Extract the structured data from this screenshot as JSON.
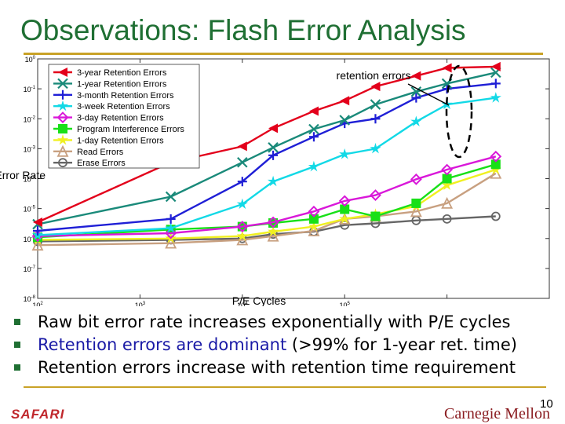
{
  "slide": {
    "title": "Observations: Flash Error Analysis",
    "bullets": [
      {
        "pre": "Raw bit error rate increases exponentially with P/E cycles",
        "highlight": "",
        "post": ""
      },
      {
        "pre": "",
        "highlight": "Retention errors are dominant",
        "post": " (>99% for 1-year ret. time)"
      },
      {
        "pre": "Retention errors increase with retention time requirement",
        "highlight": "",
        "post": ""
      }
    ],
    "footer_left": "SAFARI",
    "footer_right": "Carnegie Mellon",
    "page_number": "10",
    "colors": {
      "title": "#1f6f33",
      "rule": "#c9a227",
      "highlight": "#1a1aa6"
    }
  },
  "chart_data": {
    "type": "line",
    "x_scale": "log",
    "y_scale": "log",
    "xlabel": "P/E Cycles",
    "ylabel": "Raw Bit Error Rate",
    "xlim": [
      100,
      10000000
    ],
    "ylim": [
      1e-08,
      1
    ],
    "x_tick_labels": [
      "10^2",
      "10^3",
      "10^4",
      "10^5"
    ],
    "y_tick_labels": [
      "10^0",
      "10^-1",
      "10^-2",
      "10^-3",
      "10^-4",
      "10^-5",
      "10^-6",
      "10^-7",
      "10^-8"
    ],
    "legend_position": "top-left",
    "annotation": {
      "text": "retention errors"
    },
    "x": [
      100,
      2000,
      10000,
      20000,
      50000,
      100000,
      200000,
      500000,
      1000000,
      3000000
    ],
    "series": [
      {
        "name": "3-year Retention Errors",
        "color": "#e3001b",
        "marker": "triangle-left",
        "values": [
          3.5e-06,
          0.00035,
          0.0012,
          0.0048,
          0.018,
          0.04,
          0.12,
          0.27,
          0.5,
          0.55
        ]
      },
      {
        "name": "1-year Retention Errors",
        "color": "#1a8a7a",
        "marker": "x",
        "values": [
          3e-06,
          2.5e-05,
          0.00035,
          0.0011,
          0.0045,
          0.009,
          0.03,
          0.08,
          0.15,
          0.35
        ]
      },
      {
        "name": "3-month Retention Errors",
        "color": "#1f1fd6",
        "marker": "plus",
        "values": [
          1.8e-06,
          4.5e-06,
          8e-05,
          0.0006,
          0.0025,
          0.007,
          0.01,
          0.05,
          0.1,
          0.15
        ]
      },
      {
        "name": "3-week Retention Errors",
        "color": "#12d9e6",
        "marker": "star",
        "values": [
          1.3e-06,
          2.2e-06,
          1.4e-05,
          8e-05,
          0.00025,
          0.00065,
          0.001,
          0.008,
          0.03,
          0.05
        ]
      },
      {
        "name": "3-day Retention Errors",
        "color": "#d918d9",
        "marker": "diamond",
        "values": [
          1.2e-06,
          1.5e-06,
          2.5e-06,
          3.5e-06,
          8e-06,
          1.8e-05,
          2.8e-05,
          9.5e-05,
          0.0002,
          0.00055
        ]
      },
      {
        "name": "Program Interference Errors",
        "color": "#18e018",
        "marker": "square-star",
        "values": [
          1.1e-06,
          2e-06,
          2.5e-06,
          3.3e-06,
          4.5e-06,
          9.5e-06,
          5.5e-06,
          1.5e-05,
          0.0001,
          0.0003
        ]
      },
      {
        "name": "1-day Retention Errors",
        "color": "#f0f020",
        "marker": "star",
        "values": [
          9e-07,
          1e-06,
          1.2e-06,
          1.7e-06,
          2.5e-06,
          4.5e-06,
          6.5e-06,
          1.2e-05,
          6e-05,
          0.0002
        ]
      },
      {
        "name": "Read Errors",
        "color": "#c8a080",
        "marker": "triangle-up",
        "values": [
          6e-07,
          7e-07,
          9e-07,
          1.2e-06,
          1.8e-06,
          4.5e-06,
          5.5e-06,
          8e-06,
          1.5e-05,
          0.00015
        ]
      },
      {
        "name": "Erase Errors",
        "color": "#666666",
        "marker": "circle",
        "values": [
          8e-07,
          9e-07,
          1e-06,
          1.4e-06,
          1.7e-06,
          2.8e-06,
          3.2e-06,
          4e-06,
          4.5e-06,
          5.5e-06
        ]
      }
    ]
  }
}
